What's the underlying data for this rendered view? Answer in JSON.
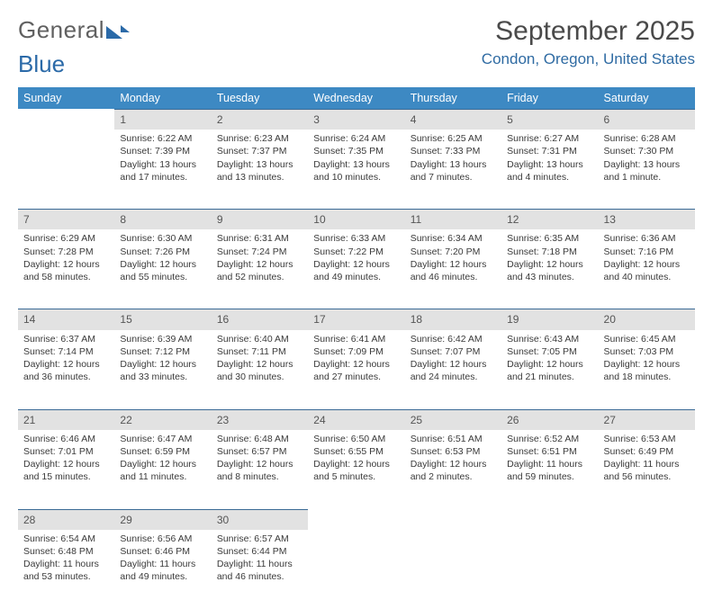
{
  "brand": {
    "part1": "General",
    "part2": "Blue"
  },
  "title": "September 2025",
  "location": "Condon, Oregon, United States",
  "colors": {
    "header_bg": "#3d89c3",
    "header_text": "#ffffff",
    "daynum_bg": "#e2e2e2",
    "daynum_border": "#3a6a95",
    "brand_blue": "#2b6aa8",
    "brand_gray": "#606060",
    "location_color": "#2f6ba3",
    "title_color": "#4a4a4a"
  },
  "weekdays": [
    "Sunday",
    "Monday",
    "Tuesday",
    "Wednesday",
    "Thursday",
    "Friday",
    "Saturday"
  ],
  "weeks": [
    [
      {
        "n": "",
        "lines": []
      },
      {
        "n": "1",
        "lines": [
          "Sunrise: 6:22 AM",
          "Sunset: 7:39 PM",
          "Daylight: 13 hours and 17 minutes."
        ]
      },
      {
        "n": "2",
        "lines": [
          "Sunrise: 6:23 AM",
          "Sunset: 7:37 PM",
          "Daylight: 13 hours and 13 minutes."
        ]
      },
      {
        "n": "3",
        "lines": [
          "Sunrise: 6:24 AM",
          "Sunset: 7:35 PM",
          "Daylight: 13 hours and 10 minutes."
        ]
      },
      {
        "n": "4",
        "lines": [
          "Sunrise: 6:25 AM",
          "Sunset: 7:33 PM",
          "Daylight: 13 hours and 7 minutes."
        ]
      },
      {
        "n": "5",
        "lines": [
          "Sunrise: 6:27 AM",
          "Sunset: 7:31 PM",
          "Daylight: 13 hours and 4 minutes."
        ]
      },
      {
        "n": "6",
        "lines": [
          "Sunrise: 6:28 AM",
          "Sunset: 7:30 PM",
          "Daylight: 13 hours and 1 minute."
        ]
      }
    ],
    [
      {
        "n": "7",
        "lines": [
          "Sunrise: 6:29 AM",
          "Sunset: 7:28 PM",
          "Daylight: 12 hours and 58 minutes."
        ]
      },
      {
        "n": "8",
        "lines": [
          "Sunrise: 6:30 AM",
          "Sunset: 7:26 PM",
          "Daylight: 12 hours and 55 minutes."
        ]
      },
      {
        "n": "9",
        "lines": [
          "Sunrise: 6:31 AM",
          "Sunset: 7:24 PM",
          "Daylight: 12 hours and 52 minutes."
        ]
      },
      {
        "n": "10",
        "lines": [
          "Sunrise: 6:33 AM",
          "Sunset: 7:22 PM",
          "Daylight: 12 hours and 49 minutes."
        ]
      },
      {
        "n": "11",
        "lines": [
          "Sunrise: 6:34 AM",
          "Sunset: 7:20 PM",
          "Daylight: 12 hours and 46 minutes."
        ]
      },
      {
        "n": "12",
        "lines": [
          "Sunrise: 6:35 AM",
          "Sunset: 7:18 PM",
          "Daylight: 12 hours and 43 minutes."
        ]
      },
      {
        "n": "13",
        "lines": [
          "Sunrise: 6:36 AM",
          "Sunset: 7:16 PM",
          "Daylight: 12 hours and 40 minutes."
        ]
      }
    ],
    [
      {
        "n": "14",
        "lines": [
          "Sunrise: 6:37 AM",
          "Sunset: 7:14 PM",
          "Daylight: 12 hours and 36 minutes."
        ]
      },
      {
        "n": "15",
        "lines": [
          "Sunrise: 6:39 AM",
          "Sunset: 7:12 PM",
          "Daylight: 12 hours and 33 minutes."
        ]
      },
      {
        "n": "16",
        "lines": [
          "Sunrise: 6:40 AM",
          "Sunset: 7:11 PM",
          "Daylight: 12 hours and 30 minutes."
        ]
      },
      {
        "n": "17",
        "lines": [
          "Sunrise: 6:41 AM",
          "Sunset: 7:09 PM",
          "Daylight: 12 hours and 27 minutes."
        ]
      },
      {
        "n": "18",
        "lines": [
          "Sunrise: 6:42 AM",
          "Sunset: 7:07 PM",
          "Daylight: 12 hours and 24 minutes."
        ]
      },
      {
        "n": "19",
        "lines": [
          "Sunrise: 6:43 AM",
          "Sunset: 7:05 PM",
          "Daylight: 12 hours and 21 minutes."
        ]
      },
      {
        "n": "20",
        "lines": [
          "Sunrise: 6:45 AM",
          "Sunset: 7:03 PM",
          "Daylight: 12 hours and 18 minutes."
        ]
      }
    ],
    [
      {
        "n": "21",
        "lines": [
          "Sunrise: 6:46 AM",
          "Sunset: 7:01 PM",
          "Daylight: 12 hours and 15 minutes."
        ]
      },
      {
        "n": "22",
        "lines": [
          "Sunrise: 6:47 AM",
          "Sunset: 6:59 PM",
          "Daylight: 12 hours and 11 minutes."
        ]
      },
      {
        "n": "23",
        "lines": [
          "Sunrise: 6:48 AM",
          "Sunset: 6:57 PM",
          "Daylight: 12 hours and 8 minutes."
        ]
      },
      {
        "n": "24",
        "lines": [
          "Sunrise: 6:50 AM",
          "Sunset: 6:55 PM",
          "Daylight: 12 hours and 5 minutes."
        ]
      },
      {
        "n": "25",
        "lines": [
          "Sunrise: 6:51 AM",
          "Sunset: 6:53 PM",
          "Daylight: 12 hours and 2 minutes."
        ]
      },
      {
        "n": "26",
        "lines": [
          "Sunrise: 6:52 AM",
          "Sunset: 6:51 PM",
          "Daylight: 11 hours and 59 minutes."
        ]
      },
      {
        "n": "27",
        "lines": [
          "Sunrise: 6:53 AM",
          "Sunset: 6:49 PM",
          "Daylight: 11 hours and 56 minutes."
        ]
      }
    ],
    [
      {
        "n": "28",
        "lines": [
          "Sunrise: 6:54 AM",
          "Sunset: 6:48 PM",
          "Daylight: 11 hours and 53 minutes."
        ]
      },
      {
        "n": "29",
        "lines": [
          "Sunrise: 6:56 AM",
          "Sunset: 6:46 PM",
          "Daylight: 11 hours and 49 minutes."
        ]
      },
      {
        "n": "30",
        "lines": [
          "Sunrise: 6:57 AM",
          "Sunset: 6:44 PM",
          "Daylight: 11 hours and 46 minutes."
        ]
      },
      {
        "n": "",
        "lines": []
      },
      {
        "n": "",
        "lines": []
      },
      {
        "n": "",
        "lines": []
      },
      {
        "n": "",
        "lines": []
      }
    ]
  ]
}
